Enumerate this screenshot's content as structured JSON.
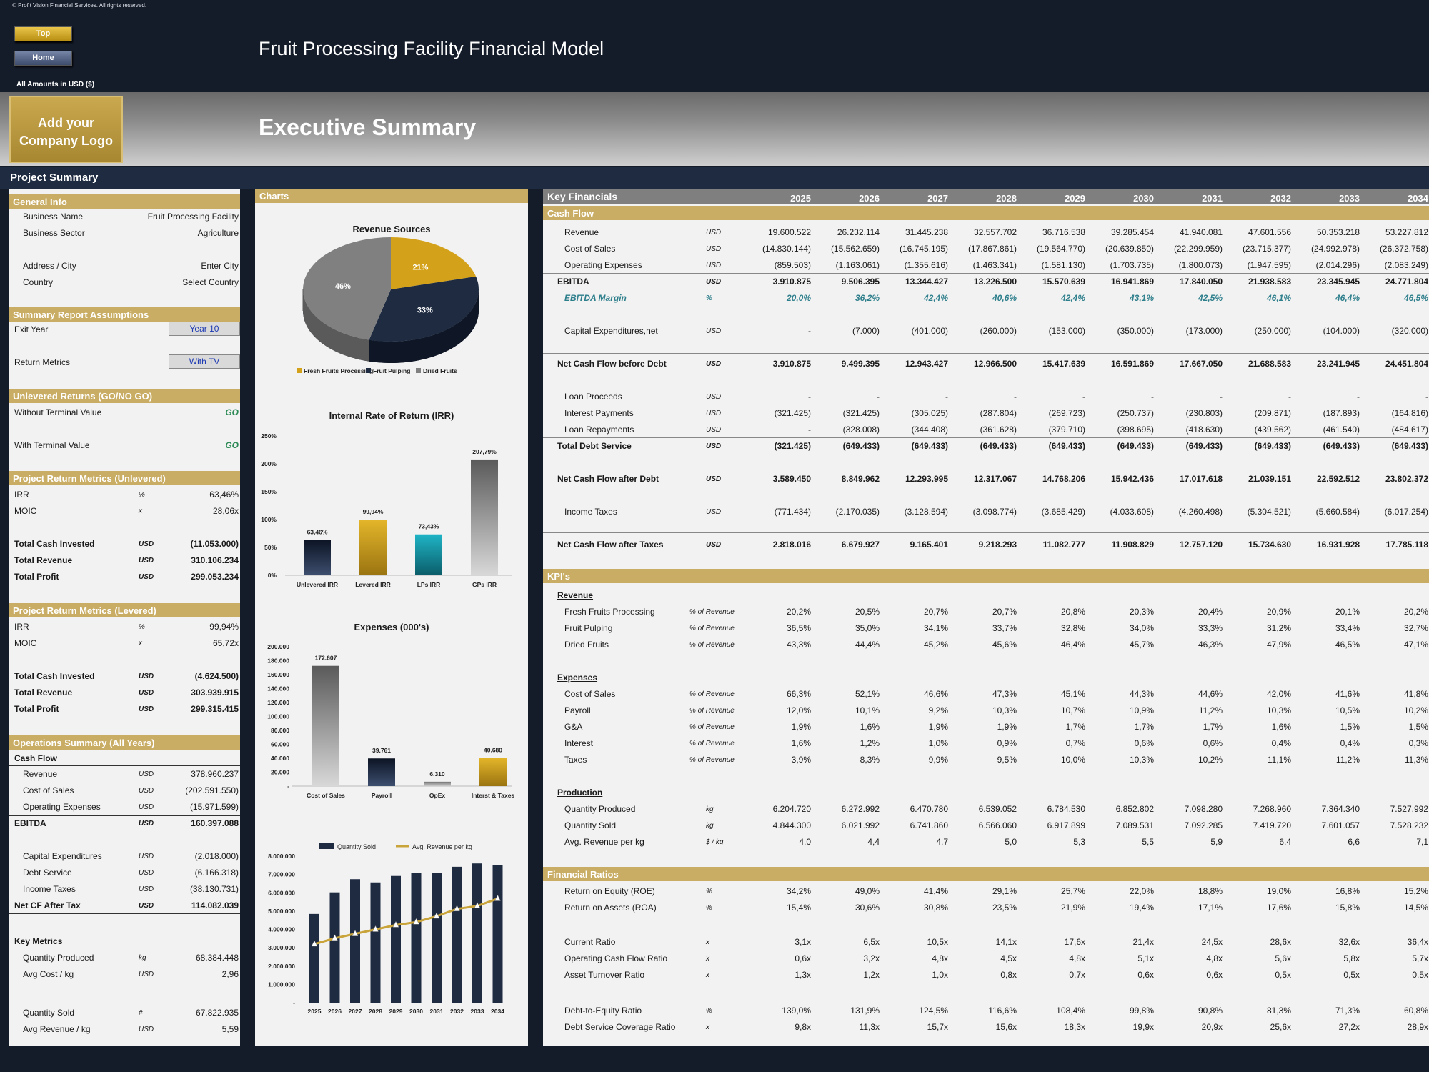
{
  "header": {
    "copyright": "© Profit Vision Financial Services. All rights reserved.",
    "top_label": "Top",
    "home_label": "Home",
    "model_title": "Fruit Processing Facility Financial Model",
    "amounts": "All Amounts in  USD ($)",
    "logo_line1": "Add your",
    "logo_line2": "Company Logo",
    "page_title": "Executive Summary",
    "project_summary": "Project Summary"
  },
  "left": {
    "general_info": "General Info",
    "business_name_label": "Business Name",
    "business_name": "Fruit Processing Facility",
    "business_sector_label": "Business Sector",
    "business_sector": "Agriculture",
    "address_label": "Address / City",
    "address": "Enter City",
    "country_label": "Country",
    "country": "Select Country",
    "assumptions": "Summary  Report Assumptions",
    "exit_year_label": "Exit Year",
    "exit_year": "Year 10",
    "return_metrics_label": "Return Metrics",
    "return_metrics": "With TV",
    "unlevered_returns": "Unlevered Returns (GO/NO GO)",
    "without_tv_label": "Without Terminal Value",
    "without_tv": "GO",
    "with_tv_label": "With Terminal Value",
    "with_tv": "GO",
    "unlev_title": "Project Return Metrics (Unlevered)",
    "unlev": [
      {
        "l": "IRR",
        "u": "%",
        "v": "63,46%"
      },
      {
        "l": "MOIC",
        "u": "x",
        "v": "28,06x"
      },
      {
        "l": "Total Cash Invested",
        "u": "USD",
        "v": "(11.053.000)"
      },
      {
        "l": "Total Revenue",
        "u": "USD",
        "v": "310.106.234"
      },
      {
        "l": "Total Profit",
        "u": "USD",
        "v": "299.053.234"
      }
    ],
    "lev_title": "Project Return Metrics (Levered)",
    "lev": [
      {
        "l": "IRR",
        "u": "%",
        "v": "99,94%"
      },
      {
        "l": "MOIC",
        "u": "x",
        "v": "65,72x"
      },
      {
        "l": "Total Cash Invested",
        "u": "USD",
        "v": "(4.624.500)"
      },
      {
        "l": "Total Revenue",
        "u": "USD",
        "v": "303.939.915"
      },
      {
        "l": "Total Profit",
        "u": "USD",
        "v": "299.315.415"
      }
    ],
    "ops_title": "Operations Summary (All Years)",
    "cash_flow_label": "Cash Flow",
    "ops": [
      {
        "l": "Revenue",
        "u": "USD",
        "v": "378.960.237"
      },
      {
        "l": "Cost of Sales",
        "u": "USD",
        "v": "(202.591.550)"
      },
      {
        "l": "Operating Expenses",
        "u": "USD",
        "v": "(15.971.599)"
      },
      {
        "l": "EBITDA",
        "u": "USD",
        "v": "160.397.088"
      },
      {
        "l": "Capital Expenditures",
        "u": "USD",
        "v": "(2.018.000)"
      },
      {
        "l": "Debt Service",
        "u": "USD",
        "v": "(6.166.318)"
      },
      {
        "l": "Income Taxes",
        "u": "USD",
        "v": "(38.130.731)"
      },
      {
        "l": "Net CF After Tax",
        "u": "USD",
        "v": "114.082.039"
      }
    ],
    "key_metrics_label": "Key Metrics",
    "km": [
      {
        "l": "Quantity Produced",
        "u": "kg",
        "v": "68.384.448"
      },
      {
        "l": "Avg Cost / kg",
        "u": "USD",
        "v": "2,96"
      },
      {
        "l": "Quantity Sold",
        "u": "#",
        "v": "67.822.935"
      },
      {
        "l": "Avg Revenue / kg",
        "u": "USD",
        "v": "5,59"
      }
    ]
  },
  "charts": {
    "panel_title": "Charts",
    "pie": {
      "title": "Revenue Sources",
      "values": [
        21,
        33,
        46
      ],
      "labels": [
        "21%",
        "33%",
        "46%"
      ],
      "legend": [
        "Fresh Fruits Processing",
        "Fruit Pulping",
        "Dried Fruits"
      ],
      "colors": [
        "#d4a21a",
        "#1e2b41",
        "#808080"
      ]
    },
    "irr": {
      "title": "Internal Rate of Return (IRR)",
      "categories": [
        "Unlevered IRR",
        "Levered IRR",
        "LPs IRR",
        "GPs IRR"
      ],
      "values": [
        63.46,
        99.94,
        73.43,
        207.79
      ],
      "labels": [
        "63,46%",
        "99,94%",
        "73,43%",
        "207,79%"
      ],
      "ticks": [
        "250%",
        "200%",
        "150%",
        "100%",
        "50%",
        "0%"
      ]
    },
    "expenses": {
      "title": "Expenses (000's)",
      "categories": [
        "Cost of Sales",
        "Payroll",
        "OpEx",
        "Interst & Taxes"
      ],
      "values": [
        172607,
        39761,
        6310,
        40680
      ],
      "labels": [
        "172.607",
        "39.761",
        "6.310",
        "40.680"
      ],
      "ticks": [
        "200.000",
        "180.000",
        "160.000",
        "140.000",
        "120.000",
        "100.000",
        "80.000",
        "60.000",
        "40.000",
        "20.000",
        "-"
      ]
    },
    "qty": {
      "legend": [
        "Quantity Sold",
        "Avg. Revenue per kg"
      ],
      "years": [
        "2025",
        "2026",
        "2027",
        "2028",
        "2029",
        "2030",
        "2031",
        "2032",
        "2033",
        "2034"
      ],
      "values": [
        4844300,
        6021992,
        6741860,
        6566060,
        6917899,
        7089531,
        7092285,
        7419720,
        7601057,
        7528232
      ],
      "avg": [
        4.0,
        4.4,
        4.7,
        5.0,
        5.3,
        5.5,
        5.9,
        6.4,
        6.6,
        7.1
      ],
      "ticks": [
        "8.000.000",
        "7.000.000",
        "6.000.000",
        "5.000.000",
        "4.000.000",
        "3.000.000",
        "2.000.000",
        "1.000.000",
        "-"
      ]
    }
  },
  "kf": {
    "title": "Key Financials",
    "years": [
      "2025",
      "2026",
      "2027",
      "2028",
      "2029",
      "2030",
      "2031",
      "2032",
      "2033",
      "2034"
    ],
    "cash_flow_label": "Cash Flow",
    "rows": [
      {
        "l": "Revenue",
        "u": "USD",
        "v": [
          "19.600.522",
          "26.232.114",
          "31.445.238",
          "32.557.702",
          "36.716.538",
          "39.285.454",
          "41.940.081",
          "47.601.556",
          "50.353.218",
          "53.227.812"
        ]
      },
      {
        "l": "Cost of Sales",
        "u": "USD",
        "v": [
          "(14.830.144)",
          "(15.562.659)",
          "(16.745.195)",
          "(17.867.861)",
          "(19.564.770)",
          "(20.639.850)",
          "(22.299.959)",
          "(23.715.377)",
          "(24.992.978)",
          "(26.372.758)"
        ]
      },
      {
        "l": "Operating Expenses",
        "u": "USD",
        "v": [
          "(859.503)",
          "(1.163.061)",
          "(1.355.616)",
          "(1.463.341)",
          "(1.581.130)",
          "(1.703.735)",
          "(1.800.073)",
          "(1.947.595)",
          "(2.014.296)",
          "(2.083.249)"
        ]
      },
      {
        "l": "EBITDA",
        "u": "USD",
        "v": [
          "3.910.875",
          "9.506.395",
          "13.344.427",
          "13.226.500",
          "15.570.639",
          "16.941.869",
          "17.840.050",
          "21.938.583",
          "23.345.945",
          "24.771.804"
        ]
      },
      {
        "l": "EBITDA Margin",
        "u": "%",
        "v": [
          "20,0%",
          "36,2%",
          "42,4%",
          "40,6%",
          "42,4%",
          "43,1%",
          "42,5%",
          "46,1%",
          "46,4%",
          "46,5%"
        ]
      },
      {
        "l": "Capital Expenditures,net",
        "u": "USD",
        "v": [
          "-",
          "(7.000)",
          "(401.000)",
          "(260.000)",
          "(153.000)",
          "(350.000)",
          "(173.000)",
          "(250.000)",
          "(104.000)",
          "(320.000)"
        ]
      },
      {
        "l": "Net Cash Flow before Debt",
        "u": "USD",
        "v": [
          "3.910.875",
          "9.499.395",
          "12.943.427",
          "12.966.500",
          "15.417.639",
          "16.591.869",
          "17.667.050",
          "21.688.583",
          "23.241.945",
          "24.451.804"
        ]
      },
      {
        "l": "Loan Proceeds",
        "u": "USD",
        "v": [
          "-",
          "-",
          "-",
          "-",
          "-",
          "-",
          "-",
          "-",
          "-",
          "-"
        ]
      },
      {
        "l": "Interest Payments",
        "u": "USD",
        "v": [
          "(321.425)",
          "(321.425)",
          "(305.025)",
          "(287.804)",
          "(269.723)",
          "(250.737)",
          "(230.803)",
          "(209.871)",
          "(187.893)",
          "(164.816)"
        ]
      },
      {
        "l": "Loan Repayments",
        "u": "USD",
        "v": [
          "-",
          "(328.008)",
          "(344.408)",
          "(361.628)",
          "(379.710)",
          "(398.695)",
          "(418.630)",
          "(439.562)",
          "(461.540)",
          "(484.617)"
        ]
      },
      {
        "l": "Total Debt Service",
        "u": "USD",
        "v": [
          "(321.425)",
          "(649.433)",
          "(649.433)",
          "(649.433)",
          "(649.433)",
          "(649.433)",
          "(649.433)",
          "(649.433)",
          "(649.433)",
          "(649.433)"
        ]
      },
      {
        "l": "Net Cash Flow after Debt",
        "u": "USD",
        "v": [
          "3.589.450",
          "8.849.962",
          "12.293.995",
          "12.317.067",
          "14.768.206",
          "15.942.436",
          "17.017.618",
          "21.039.151",
          "22.592.512",
          "23.802.372"
        ]
      },
      {
        "l": "Income Taxes",
        "u": "USD",
        "v": [
          "(771.434)",
          "(2.170.035)",
          "(3.128.594)",
          "(3.098.774)",
          "(3.685.429)",
          "(4.033.608)",
          "(4.260.498)",
          "(5.304.521)",
          "(5.660.584)",
          "(6.017.254)"
        ]
      },
      {
        "l": "Net Cash Flow after Taxes",
        "u": "USD",
        "v": [
          "2.818.016",
          "6.679.927",
          "9.165.401",
          "9.218.293",
          "11.082.777",
          "11.908.829",
          "12.757.120",
          "15.734.630",
          "16.931.928",
          "17.785.118"
        ]
      }
    ],
    "kpi_label": "KPI's",
    "revenue_label": "Revenue",
    "rev_rows": [
      {
        "l": "Fresh Fruits Processing",
        "u": "% of Revenue",
        "v": [
          "20,2%",
          "20,5%",
          "20,7%",
          "20,7%",
          "20,8%",
          "20,3%",
          "20,4%",
          "20,9%",
          "20,1%",
          "20,2%"
        ]
      },
      {
        "l": "Fruit Pulping",
        "u": "% of Revenue",
        "v": [
          "36,5%",
          "35,0%",
          "34,1%",
          "33,7%",
          "32,8%",
          "34,0%",
          "33,3%",
          "31,2%",
          "33,4%",
          "32,7%"
        ]
      },
      {
        "l": "Dried Fruits",
        "u": "% of Revenue",
        "v": [
          "43,3%",
          "44,4%",
          "45,2%",
          "45,6%",
          "46,4%",
          "45,7%",
          "46,3%",
          "47,9%",
          "46,5%",
          "47,1%"
        ]
      }
    ],
    "expenses_label": "Expenses",
    "exp_rows": [
      {
        "l": "Cost of Sales",
        "u": "% of Revenue",
        "v": [
          "66,3%",
          "52,1%",
          "46,6%",
          "47,3%",
          "45,1%",
          "44,3%",
          "44,6%",
          "42,0%",
          "41,6%",
          "41,8%"
        ]
      },
      {
        "l": "Payroll",
        "u": "% of Revenue",
        "v": [
          "12,0%",
          "10,1%",
          "9,2%",
          "10,3%",
          "10,7%",
          "10,9%",
          "11,2%",
          "10,3%",
          "10,5%",
          "10,2%"
        ]
      },
      {
        "l": "G&A",
        "u": "% of Revenue",
        "v": [
          "1,9%",
          "1,6%",
          "1,9%",
          "1,9%",
          "1,7%",
          "1,7%",
          "1,7%",
          "1,6%",
          "1,5%",
          "1,5%"
        ]
      },
      {
        "l": "Interest",
        "u": "% of Revenue",
        "v": [
          "1,6%",
          "1,2%",
          "1,0%",
          "0,9%",
          "0,7%",
          "0,6%",
          "0,6%",
          "0,4%",
          "0,4%",
          "0,3%"
        ]
      },
      {
        "l": "Taxes",
        "u": "% of Revenue",
        "v": [
          "3,9%",
          "8,3%",
          "9,9%",
          "9,5%",
          "10,0%",
          "10,3%",
          "10,2%",
          "11,1%",
          "11,2%",
          "11,3%"
        ]
      }
    ],
    "production_label": "Production",
    "prod_rows": [
      {
        "l": "Quantity Produced",
        "u": "kg",
        "v": [
          "6.204.720",
          "6.272.992",
          "6.470.780",
          "6.539.052",
          "6.784.530",
          "6.852.802",
          "7.098.280",
          "7.268.960",
          "7.364.340",
          "7.527.992"
        ]
      },
      {
        "l": "Quantity Sold",
        "u": "kg",
        "v": [
          "4.844.300",
          "6.021.992",
          "6.741.860",
          "6.566.060",
          "6.917.899",
          "7.089.531",
          "7.092.285",
          "7.419.720",
          "7.601.057",
          "7.528.232"
        ]
      },
      {
        "l": "Avg. Revenue per kg",
        "u": "$ / kg",
        "v": [
          "4,0",
          "4,4",
          "4,7",
          "5,0",
          "5,3",
          "5,5",
          "5,9",
          "6,4",
          "6,6",
          "7,1"
        ]
      }
    ],
    "ratios_label": "Financial Ratios",
    "ratio_rows": [
      {
        "l": "Return on Equity (ROE)",
        "u": "%",
        "v": [
          "34,2%",
          "49,0%",
          "41,4%",
          "29,1%",
          "25,7%",
          "22,0%",
          "18,8%",
          "19,0%",
          "16,8%",
          "15,2%"
        ]
      },
      {
        "l": "Return on Assets (ROA)",
        "u": "%",
        "v": [
          "15,4%",
          "30,6%",
          "30,8%",
          "23,5%",
          "21,9%",
          "19,4%",
          "17,1%",
          "17,6%",
          "15,8%",
          "14,5%"
        ]
      },
      {
        "l": "Current Ratio",
        "u": "x",
        "v": [
          "3,1x",
          "6,5x",
          "10,5x",
          "14,1x",
          "17,6x",
          "21,4x",
          "24,5x",
          "28,6x",
          "32,6x",
          "36,4x"
        ]
      },
      {
        "l": "Operating Cash Flow Ratio",
        "u": "x",
        "v": [
          "0,6x",
          "3,2x",
          "4,8x",
          "4,5x",
          "4,8x",
          "5,1x",
          "4,8x",
          "5,6x",
          "5,8x",
          "5,7x"
        ]
      },
      {
        "l": "Asset Turnover Ratio",
        "u": "x",
        "v": [
          "1,3x",
          "1,2x",
          "1,0x",
          "0,8x",
          "0,7x",
          "0,6x",
          "0,6x",
          "0,5x",
          "0,5x",
          "0,5x"
        ]
      },
      {
        "l": "Debt-to-Equity Ratio",
        "u": "%",
        "v": [
          "139,0%",
          "131,9%",
          "124,5%",
          "116,6%",
          "108,4%",
          "99,8%",
          "90,8%",
          "81,3%",
          "71,3%",
          "60,8%"
        ]
      },
      {
        "l": "Debt Service Coverage Ratio",
        "u": "x",
        "v": [
          "9,8x",
          "11,3x",
          "15,7x",
          "15,6x",
          "18,3x",
          "19,9x",
          "20,9x",
          "25,6x",
          "27,2x",
          "28,9x"
        ]
      }
    ]
  }
}
